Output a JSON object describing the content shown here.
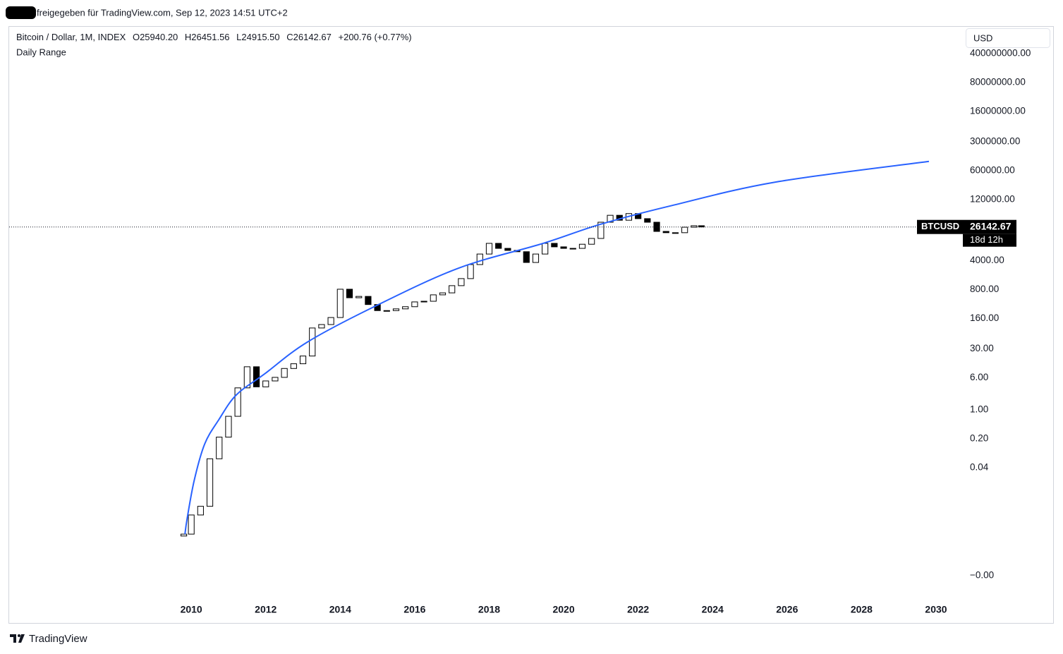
{
  "header": {
    "shared_by": "freigegeben für TradingView.com, Sep 12, 2023 14:51 UTC+2"
  },
  "chart_data": {
    "type": "candlestick",
    "symbol": "Bitcoin / Dollar, 1M, INDEX",
    "ohlc": [
      "O25940.20",
      "H26451.56",
      "L24915.50",
      "C26142.67",
      "+200.76 (+0.77%)"
    ],
    "currency": "USD",
    "log_scale": true,
    "grid": false,
    "xlim": [
      2005.11,
      2030.72
    ],
    "xticks": [
      2010,
      2012,
      2014,
      2016,
      2018,
      2020,
      2022,
      2024,
      2026,
      2028,
      2030
    ],
    "ylim": [
      7.16e-06,
      1780000000
    ],
    "yticks": [
      {
        "value": 400000000,
        "label": "400000000.00"
      },
      {
        "value": 80000000,
        "label": "80000000.00"
      },
      {
        "value": 16000000,
        "label": "16000000.00"
      },
      {
        "value": 3000000,
        "label": "3000000.00"
      },
      {
        "value": 600000,
        "label": "600000.00"
      },
      {
        "value": 120000,
        "label": "120000.00"
      },
      {
        "value": 4000,
        "label": "4000.00"
      },
      {
        "value": 800,
        "label": "800.00"
      },
      {
        "value": 160,
        "label": "160.00"
      },
      {
        "value": 30,
        "label": "30.00"
      },
      {
        "value": 6,
        "label": "6.00"
      },
      {
        "value": 1,
        "label": "1.00"
      },
      {
        "value": 0.2,
        "label": "0.20"
      },
      {
        "value": 0.04,
        "label": "0.04"
      },
      {
        "value": 0.0001,
        "label": "−0.00"
      }
    ],
    "x": [
      2009.8,
      2010,
      2010.25,
      2010.5,
      2010.75,
      2011,
      2011.25,
      2011.5,
      2011.75,
      2012,
      2012.25,
      2012.5,
      2012.75,
      2013,
      2013.25,
      2013.5,
      2013.75,
      2014,
      2014.25,
      2014.5,
      2014.75,
      2015,
      2015.25,
      2015.5,
      2015.75,
      2016,
      2016.25,
      2016.5,
      2016.75,
      2017,
      2017.25,
      2017.5,
      2017.75,
      2018,
      2018.25,
      2018.5,
      2018.75,
      2019,
      2019.25,
      2019.5,
      2019.75,
      2020,
      2020.25,
      2020.5,
      2020.75,
      2021,
      2021.25,
      2021.5,
      2021.75,
      2022,
      2022.25,
      2022.5,
      2022.75,
      2023,
      2023.25,
      2023.5,
      2023.7
    ],
    "open": [
      0.0009,
      0.001,
      0.0029,
      0.0047,
      0.066,
      0.22,
      0.7,
      3.4,
      11,
      3.6,
      5.0,
      6.1,
      10,
      13,
      20,
      95,
      115,
      170,
      820,
      510,
      550,
      350,
      250,
      250,
      275,
      310,
      405,
      420,
      600,
      670,
      1000,
      1480,
      3230,
      5800,
      10500,
      7950,
      7100,
      6600,
      3630,
      5800,
      10500,
      8650,
      7950,
      7950,
      10000,
      13800,
      34000,
      50000,
      38000,
      55000,
      41500,
      34000,
      20400,
      19000,
      19000,
      25800,
      28000
    ],
    "close": [
      0.001,
      0.0029,
      0.0047,
      0.066,
      0.22,
      0.7,
      3.4,
      11,
      3.6,
      5.0,
      6.1,
      10,
      13,
      20,
      95,
      115,
      170,
      820,
      510,
      550,
      350,
      250,
      250,
      275,
      310,
      405,
      420,
      600,
      670,
      1000,
      1480,
      3230,
      5800,
      10500,
      7950,
      7100,
      6600,
      3630,
      5800,
      10500,
      8650,
      7950,
      7950,
      10000,
      13800,
      34000,
      50000,
      38000,
      55000,
      41500,
      34000,
      20400,
      19000,
      19000,
      25800,
      28000,
      26142.67
    ],
    "up_color": "#ffffff",
    "down_color": "#000000",
    "outline_color": "#000000",
    "series": [
      {
        "name": "Daily Range",
        "color": "#2962ff",
        "x": [
          2009.83,
          2009.89,
          2010.08,
          2010.36,
          2010.74,
          2011.21,
          2011.97,
          2013.11,
          2014.91,
          2017.18,
          2019.45,
          2020.97,
          2022.86,
          2025.7,
          2029.81
        ],
        "values": [
          0.001,
          0.0024,
          0.02,
          0.15,
          0.58,
          2.3,
          7.4,
          43,
          310,
          2650,
          10500,
          30000,
          84000,
          318000,
          1000000
        ]
      }
    ],
    "last_price": {
      "symbol": "BTCUSD",
      "value": 26142.67,
      "countdown": "18d 12h"
    }
  },
  "footer": {
    "brand": "TradingView"
  }
}
